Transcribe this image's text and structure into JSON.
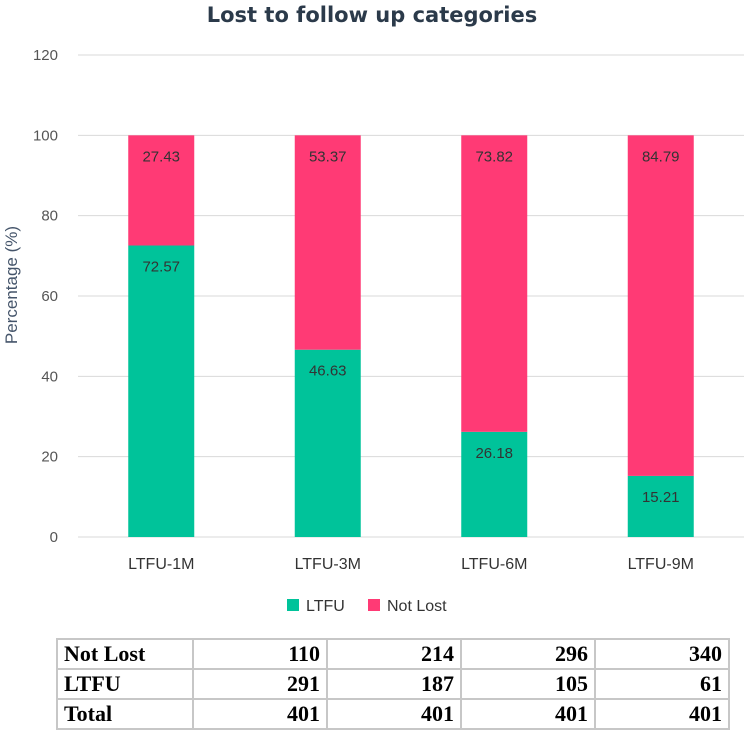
{
  "chart_data": {
    "type": "bar",
    "stacked": true,
    "title": "Lost to follow up categories",
    "ylabel": "Percentage (%)",
    "xlabel": "",
    "ylim": [
      0,
      120
    ],
    "yticks": [
      0,
      20,
      40,
      60,
      80,
      100,
      120
    ],
    "categories": [
      "LTFU-1M",
      "LTFU-3M",
      "LTFU-6M",
      "LTFU-9M"
    ],
    "series": [
      {
        "name": "LTFU",
        "color": "#00c39a",
        "values": [
          72.57,
          46.63,
          26.18,
          15.21
        ],
        "labels": [
          "72.57",
          "46.63",
          "26.18",
          "15.21"
        ]
      },
      {
        "name": "Not Lost",
        "color": "#ff3a75",
        "values": [
          27.43,
          53.37,
          73.82,
          84.79
        ],
        "labels": [
          "27.43",
          "53.37",
          "73.82",
          "84.79"
        ]
      }
    ],
    "legend": {
      "position": "bottom",
      "labels": [
        "LTFU",
        "Not Lost"
      ]
    },
    "grid": true
  },
  "table": {
    "rows": [
      {
        "label": "Not Lost",
        "values": [
          "110",
          "214",
          "296",
          "340"
        ]
      },
      {
        "label": "LTFU",
        "values": [
          "291",
          "187",
          "105",
          "61"
        ]
      },
      {
        "label": "Total",
        "values": [
          "401",
          "401",
          "401",
          "401"
        ]
      }
    ]
  }
}
